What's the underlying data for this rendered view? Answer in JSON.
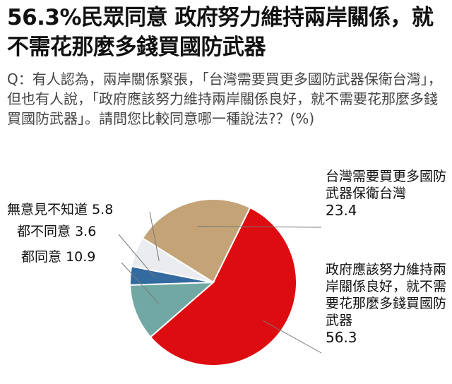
{
  "title": "56.3%民眾同意 政府努力維持兩岸關係，就不需花那麼多錢買國防武器",
  "question": "Q：有人認為，兩岸關係緊張，「台灣需要買更多國防武器保衛台灣」，但也有人說，「政府應該努力維持兩岸關係良好，就不需要花那麼多錢買國防武器」。請問您比較同意哪一種說法?？(%)",
  "chart_data": {
    "type": "pie",
    "title": "56.3%民眾同意 政府努力維持兩岸關係，就不需花那麼多錢買國防武器",
    "slices": [
      {
        "label": "台灣需要買更多國防武器保衛台灣",
        "value": 23.4,
        "value_text": "23.4",
        "color": "#c4a477"
      },
      {
        "label": "政府應該努力維持兩岸關係良好，就不需要花那麼多錢買國防武器",
        "value": 56.3,
        "value_text": "56.3",
        "color": "#dd0c10"
      },
      {
        "label": "都同意",
        "value": 10.9,
        "value_text": "10.9",
        "color": "#72a8a4"
      },
      {
        "label": "都不同意",
        "value": 3.6,
        "value_text": "3.6",
        "color": "#336aa0"
      },
      {
        "label": "無意見不知道",
        "value": 5.8,
        "value_text": "5.8",
        "color": "#ebecef"
      }
    ]
  }
}
